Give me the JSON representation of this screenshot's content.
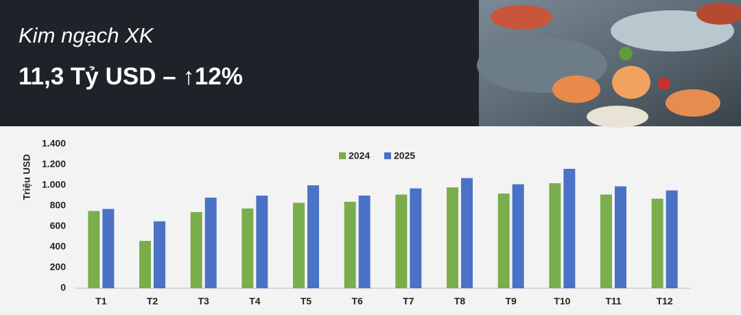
{
  "header": {
    "subtitle": "Kim ngạch XK",
    "headline": "11,3 Tỷ USD –  ↑12%"
  },
  "chart_data": {
    "type": "bar",
    "y_label": "Triệu USD",
    "categories": [
      "T1",
      "T2",
      "T3",
      "T4",
      "T5",
      "T6",
      "T7",
      "T8",
      "T9",
      "T10",
      "T11",
      "T12"
    ],
    "series": [
      {
        "name": "2024",
        "color": "#7aae4c",
        "values": [
          750,
          460,
          740,
          775,
          830,
          840,
          910,
          980,
          920,
          1020,
          910,
          870
        ]
      },
      {
        "name": "2025",
        "color": "#4a72c6",
        "values": [
          770,
          650,
          880,
          900,
          1000,
          900,
          970,
          1070,
          1010,
          1160,
          990,
          950
        ]
      }
    ],
    "ylim": [
      0,
      1400
    ],
    "yticks": [
      0,
      200,
      400,
      600,
      800,
      {
        "value": 1000,
        "label": "1.000"
      },
      {
        "value": 1200,
        "label": "1.200"
      },
      {
        "value": 1400,
        "label": "1.400"
      }
    ],
    "grid": false,
    "legend": "top"
  }
}
